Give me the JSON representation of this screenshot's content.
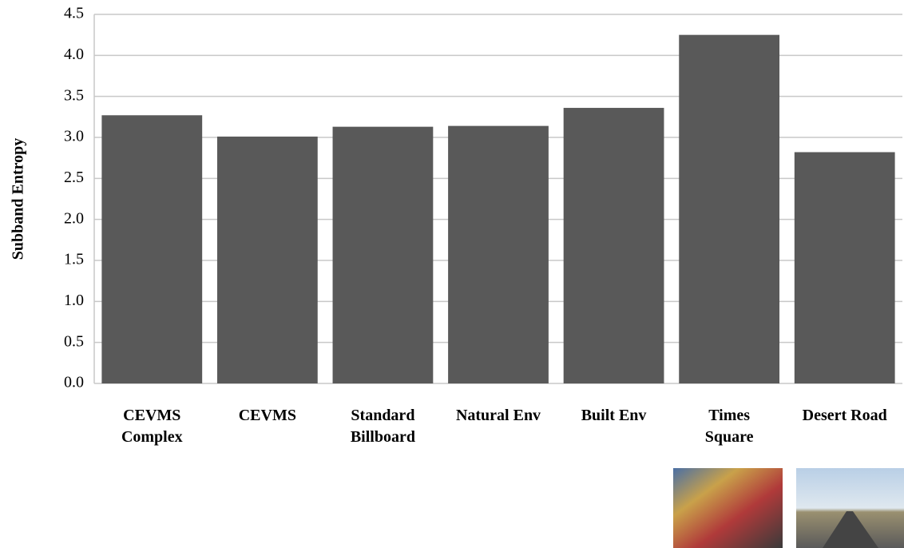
{
  "chart_data": {
    "type": "bar",
    "y_label": "Subband Entropy",
    "categories": [
      "CEVMS\nComplex",
      "CEVMS",
      "Standard\nBillboard",
      "Natural Env",
      "Built Env",
      "Times\nSquare",
      "Desert Road"
    ],
    "values": [
      3.27,
      3.01,
      3.13,
      3.14,
      3.36,
      4.25,
      2.82
    ],
    "color": "#595959",
    "ylim": [
      0,
      4.5
    ],
    "yticks": [
      {
        "value": 0,
        "label": "0.0"
      },
      0.5,
      {
        "value": 1,
        "label": "1.0"
      },
      1.5,
      {
        "value": 2,
        "label": "2.0"
      },
      2.5,
      {
        "value": 3,
        "label": "3.0"
      },
      3.5,
      {
        "value": 4,
        "label": "4.0"
      },
      4.5
    ],
    "grid": true
  }
}
